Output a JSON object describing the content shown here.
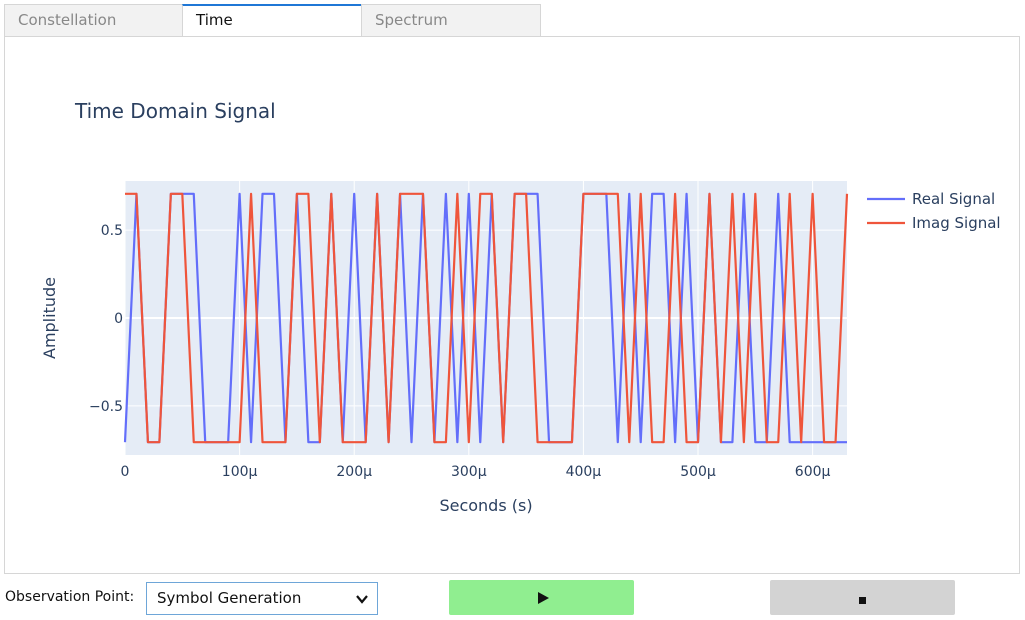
{
  "tabs": [
    {
      "label": "Constellation",
      "active": false
    },
    {
      "label": "Time",
      "active": true
    },
    {
      "label": "Spectrum",
      "active": false
    }
  ],
  "controls": {
    "observation_label": "Observation Point:",
    "observation_value": "Symbol Generation",
    "play_icon": "play-icon",
    "stop_icon": "stop-icon",
    "play_color": "#90ee90",
    "stop_color": "#d3d3d3"
  },
  "chart_data": {
    "type": "line",
    "title": "Time Domain Signal",
    "xlabel": "Seconds (s)",
    "ylabel": "Amplitude",
    "xlim": [
      0,
      0.00063
    ],
    "ylim": [
      -0.78,
      0.78
    ],
    "xticks": [
      {
        "value": 0,
        "label": "0"
      },
      {
        "value": 0.0001,
        "label": "100µ"
      },
      {
        "value": 0.0002,
        "label": "200µ"
      },
      {
        "value": 0.0003,
        "label": "300µ"
      },
      {
        "value": 0.0004,
        "label": "400µ"
      },
      {
        "value": 0.0005,
        "label": "500µ"
      },
      {
        "value": 0.0006,
        "label": "600µ"
      }
    ],
    "yticks": [
      {
        "value": 0.5,
        "label": "0.5"
      },
      {
        "value": 0,
        "label": "0"
      },
      {
        "value": -0.5,
        "label": "−0.5"
      }
    ],
    "grid": true,
    "legend_position": "right",
    "plot_bg": "#e5ecf6",
    "series": [
      {
        "name": "Real Signal",
        "color": "#636efa",
        "x": [
          0,
          1e-05,
          2e-05,
          3e-05,
          4e-05,
          5e-05,
          6e-05,
          7e-05,
          8e-05,
          9e-05,
          0.0001,
          0.00011,
          0.00012,
          0.00013,
          0.00014,
          0.00015,
          0.00016,
          0.00017,
          0.00018,
          0.00019,
          0.0002,
          0.00021,
          0.00022,
          0.00023,
          0.00024,
          0.00025,
          0.00026,
          0.00027,
          0.00028,
          0.00029,
          0.0003,
          0.00031,
          0.00032,
          0.00033,
          0.00034,
          0.00035,
          0.00036,
          0.00037,
          0.00038,
          0.00039,
          0.0004,
          0.00041,
          0.00042,
          0.00043,
          0.00044,
          0.00045,
          0.00046,
          0.00047,
          0.00048,
          0.00049,
          0.0005,
          0.00051,
          0.00052,
          0.00053,
          0.00054,
          0.00055,
          0.00056,
          0.00057,
          0.00058,
          0.00059,
          0.0006,
          0.00061,
          0.00062,
          0.00063
        ],
        "y": [
          -0.707,
          0.707,
          -0.707,
          -0.707,
          0.707,
          0.707,
          0.707,
          -0.707,
          -0.707,
          -0.707,
          0.707,
          -0.707,
          0.707,
          0.707,
          -0.707,
          0.707,
          -0.707,
          -0.707,
          0.707,
          -0.707,
          0.707,
          -0.707,
          0.707,
          -0.707,
          0.707,
          -0.707,
          0.707,
          -0.707,
          0.707,
          -0.707,
          0.707,
          -0.707,
          0.707,
          -0.707,
          0.707,
          0.707,
          0.707,
          -0.707,
          -0.707,
          -0.707,
          0.707,
          0.707,
          0.707,
          -0.707,
          0.707,
          -0.707,
          0.707,
          0.707,
          -0.707,
          0.707,
          -0.707,
          0.707,
          -0.707,
          -0.707,
          0.707,
          -0.707,
          -0.707,
          0.707,
          -0.707,
          -0.707,
          -0.707,
          -0.707,
          -0.707,
          -0.707
        ]
      },
      {
        "name": "Imag Signal",
        "color": "#ef553b",
        "x": [
          0,
          1e-05,
          2e-05,
          3e-05,
          4e-05,
          5e-05,
          6e-05,
          7e-05,
          8e-05,
          9e-05,
          0.0001,
          0.00011,
          0.00012,
          0.00013,
          0.00014,
          0.00015,
          0.00016,
          0.00017,
          0.00018,
          0.00019,
          0.0002,
          0.00021,
          0.00022,
          0.00023,
          0.00024,
          0.00025,
          0.00026,
          0.00027,
          0.00028,
          0.00029,
          0.0003,
          0.00031,
          0.00032,
          0.00033,
          0.00034,
          0.00035,
          0.00036,
          0.00037,
          0.00038,
          0.00039,
          0.0004,
          0.00041,
          0.00042,
          0.00043,
          0.00044,
          0.00045,
          0.00046,
          0.00047,
          0.00048,
          0.00049,
          0.0005,
          0.00051,
          0.00052,
          0.00053,
          0.00054,
          0.00055,
          0.00056,
          0.00057,
          0.00058,
          0.00059,
          0.0006,
          0.00061,
          0.00062,
          0.00063
        ],
        "y": [
          0.707,
          0.707,
          -0.707,
          -0.707,
          0.707,
          0.707,
          -0.707,
          -0.707,
          -0.707,
          -0.707,
          -0.707,
          0.707,
          -0.707,
          -0.707,
          -0.707,
          0.707,
          0.707,
          -0.707,
          0.707,
          -0.707,
          -0.707,
          -0.707,
          0.707,
          -0.707,
          0.707,
          0.707,
          0.707,
          -0.707,
          -0.707,
          0.707,
          -0.707,
          0.707,
          0.707,
          -0.707,
          0.707,
          0.707,
          -0.707,
          -0.707,
          -0.707,
          -0.707,
          0.707,
          0.707,
          0.707,
          0.707,
          -0.707,
          0.707,
          -0.707,
          -0.707,
          0.707,
          -0.707,
          -0.707,
          0.707,
          -0.707,
          0.707,
          -0.707,
          0.707,
          -0.707,
          -0.707,
          0.707,
          -0.707,
          0.707,
          -0.707,
          -0.707,
          0.707
        ]
      }
    ]
  }
}
